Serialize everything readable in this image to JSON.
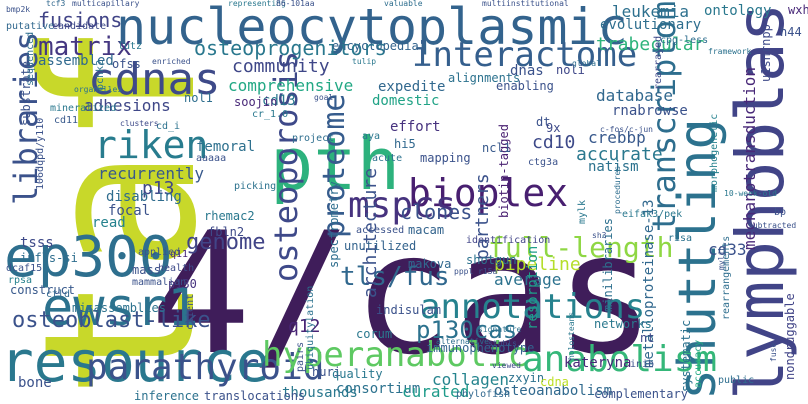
{
  "words": [
    {
      "text": "taf15",
      "color": "#c8d82a"
    },
    {
      "text": "4/cas",
      "color": "#3f1d5a"
    },
    {
      "text": "nucleocytoplasmic",
      "color": "#33638d"
    },
    {
      "text": "ep300",
      "color": "#2e6f8e"
    },
    {
      "text": "pth",
      "color": "#2db27d"
    },
    {
      "text": "ewsr1",
      "color": "#2c728e"
    },
    {
      "text": "resource",
      "color": "#2a788e"
    },
    {
      "text": "cdnas",
      "color": "#3e4a89"
    },
    {
      "text": "lymphoblastic",
      "color": "#414487"
    },
    {
      "text": "shuttling",
      "color": "#2c728e"
    },
    {
      "text": "interactome",
      "color": "#355f8d"
    },
    {
      "text": "bioplex",
      "color": "#481f70"
    },
    {
      "text": "mspcs",
      "color": "#46327e"
    },
    {
      "text": "parathyroid",
      "color": "#3b528b"
    },
    {
      "text": "hyperanabolic",
      "color": "#5ec962"
    },
    {
      "text": "anabolism",
      "color": "#35b779"
    },
    {
      "text": "libraries",
      "color": "#3b528b"
    },
    {
      "text": "riken",
      "color": "#287c8e"
    },
    {
      "text": "transcriptome",
      "color": "#2e6e8e"
    },
    {
      "text": "proteome",
      "color": "#365c8d"
    },
    {
      "text": "osteoporosis",
      "color": "#3e4989"
    },
    {
      "text": "annotations",
      "color": "#26828e"
    },
    {
      "text": "full-length",
      "color": "#8fd744"
    },
    {
      "text": "matrix",
      "color": "#453781"
    },
    {
      "text": "osteoprogenitors",
      "color": "#2a788e"
    },
    {
      "text": "community",
      "color": "#3f4788"
    },
    {
      "text": "comprehensive",
      "color": "#22a884"
    },
    {
      "text": "mechanotransduction",
      "color": "#482878"
    },
    {
      "text": "trabecular",
      "color": "#2fb47c"
    },
    {
      "text": "leukemia",
      "color": "#2d708e"
    },
    {
      "text": "fusions",
      "color": "#414487"
    },
    {
      "text": "osteoblast-like",
      "color": "#3b528b"
    },
    {
      "text": "tls/fus",
      "color": "#31688e"
    },
    {
      "text": "p130cas",
      "color": "#2c728e"
    },
    {
      "text": "q12",
      "color": "#482475"
    },
    {
      "text": "architecture",
      "color": "#3b528b"
    },
    {
      "text": "clones",
      "color": "#3b528b"
    },
    {
      "text": "genome",
      "color": "#414487"
    },
    {
      "text": "p13",
      "color": "#404688"
    },
    {
      "text": "cd10",
      "color": "#3e4a89"
    },
    {
      "text": "partners",
      "color": "#3b528b"
    },
    {
      "text": "pipeline",
      "color": "#b5de2b"
    },
    {
      "text": "average",
      "color": "#2c728e"
    },
    {
      "text": "accurate",
      "color": "#2a788e"
    },
    {
      "text": "crebbp",
      "color": "#38598c"
    },
    {
      "text": "database",
      "color": "#31688e"
    },
    {
      "text": "rnabrowse",
      "color": "#3b528b"
    },
    {
      "text": "immunophenotype",
      "color": "#33638d"
    },
    {
      "text": "collagen",
      "color": "#25848e"
    },
    {
      "text": "resorption",
      "color": "#1f9e89"
    },
    {
      "text": "consortium",
      "color": "#2c728e"
    },
    {
      "text": "curated",
      "color": "#1e9b8a"
    },
    {
      "text": "thousands",
      "color": "#2a788e"
    },
    {
      "text": "osteoanabolism",
      "color": "#30698e"
    },
    {
      "text": "inference",
      "color": "#2c728e"
    },
    {
      "text": "bone",
      "color": "#3b528b"
    },
    {
      "text": "adhesions",
      "color": "#3f4788"
    },
    {
      "text": "recurrently",
      "color": "#38598c"
    },
    {
      "text": "disabling",
      "color": "#2f6c8e"
    },
    {
      "text": "read",
      "color": "#26828e"
    },
    {
      "text": "focal",
      "color": "#3b528b"
    },
    {
      "text": "femoral",
      "color": "#2d708e"
    },
    {
      "text": "tsss",
      "color": "#3e4a89"
    },
    {
      "text": "ontology",
      "color": "#2a788e"
    },
    {
      "text": "evolutionary",
      "color": "#2e6e8e"
    },
    {
      "text": "assembled",
      "color": "#30698e"
    },
    {
      "text": "encyclopedia",
      "color": "#33638d"
    },
    {
      "text": "cd13",
      "color": "#2a788e"
    },
    {
      "text": "soojin",
      "color": "#482878"
    },
    {
      "text": "nol1",
      "color": "#2e6e8e"
    },
    {
      "text": "domestic",
      "color": "#20a386"
    },
    {
      "text": "expedite",
      "color": "#31688e"
    },
    {
      "text": "effort",
      "color": "#46327e"
    },
    {
      "text": "dnas",
      "color": "#3b528b"
    },
    {
      "text": "noli",
      "color": "#3f4788"
    },
    {
      "text": "enabling",
      "color": "#3b528b"
    },
    {
      "text": "biotin-tagged",
      "color": "#481f70"
    },
    {
      "text": "natism",
      "color": "#2c728e"
    },
    {
      "text": "metalloproteinase-13",
      "color": "#31688e"
    },
    {
      "text": "morphogenetic",
      "color": "#26828e"
    },
    {
      "text": "cd33",
      "color": "#3b528b"
    },
    {
      "text": "kateryna",
      "color": "#482878"
    },
    {
      "text": "networks",
      "color": "#2a788e"
    },
    {
      "text": "nt",
      "color": "#3e4a89"
    },
    {
      "text": "minilibraries",
      "color": "#2d708e"
    },
    {
      "text": "systematic",
      "color": "#2c728e"
    },
    {
      "text": "accuracy",
      "color": "#22a884"
    },
    {
      "text": "rearrangements",
      "color": "#2e6e8e"
    },
    {
      "text": "nondruggable",
      "color": "#414487"
    },
    {
      "text": "huri",
      "color": "#3b528b"
    },
    {
      "text": "pairs",
      "color": "#3b528b"
    },
    {
      "text": "quality",
      "color": "#2a788e"
    },
    {
      "text": "zxyin",
      "color": "#2c728e"
    },
    {
      "text": "phylofish",
      "color": "#31688e"
    },
    {
      "text": "complementary",
      "color": "#3b528b"
    },
    {
      "text": "translocations",
      "color": "#3b528b"
    },
    {
      "text": "mass",
      "color": "#3b528b"
    },
    {
      "text": "construct",
      "color": "#38598c"
    },
    {
      "text": "infls-si",
      "color": "#2e6e8e"
    },
    {
      "text": "misassemblies",
      "color": "#2c728e"
    },
    {
      "text": "rhemac2",
      "color": "#2a788e"
    },
    {
      "text": "fbln2",
      "color": "#3e4a89"
    },
    {
      "text": "p130",
      "color": "#46327e"
    },
    {
      "text": "unutilized",
      "color": "#33638d"
    },
    {
      "text": "indisulam",
      "color": "#3b528b"
    },
    {
      "text": "makova",
      "color": "#31688e"
    },
    {
      "text": "shotgun",
      "color": "#2c728e"
    },
    {
      "text": "spectrometry",
      "color": "#2e6e8e"
    },
    {
      "text": "macam",
      "color": "#33638d"
    },
    {
      "text": "ubiquitylation",
      "color": "#2c728e"
    },
    {
      "text": "corum",
      "color": "#2a788e"
    },
    {
      "text": "mapping",
      "color": "#3b528b"
    },
    {
      "text": "hi5",
      "color": "#31688e"
    },
    {
      "text": "ncl1",
      "color": "#38598c"
    },
    {
      "text": "cdna",
      "color": "#bddf26"
    },
    {
      "text": "mylk",
      "color": "#2a788e"
    },
    {
      "text": "dt",
      "color": "#3b528b"
    },
    {
      "text": "9x",
      "color": "#3e4a89"
    },
    {
      "text": "alignments",
      "color": "#2c728e"
    },
    {
      "text": "ofss",
      "color": "#3b528b"
    },
    {
      "text": "lutz",
      "color": "#2a788e"
    },
    {
      "text": "pchk2",
      "color": "#2c728e"
    },
    {
      "text": "u1snrnpp",
      "color": "#3e4a89"
    },
    {
      "text": "h44",
      "color": "#3b528b"
    },
    {
      "text": "wxh",
      "color": "#482878"
    },
    {
      "text": "substrate",
      "color": "#3b528b"
    },
    {
      "text": "putative",
      "color": "#31688e"
    },
    {
      "text": "candidate",
      "color": "#3e4a89"
    },
    {
      "text": "sequenced",
      "color": "#2e6e8e"
    },
    {
      "text": "106dqpd/y110",
      "color": "#3b528b"
    },
    {
      "text": "mineralized",
      "color": "#2a788e"
    },
    {
      "text": "cd11",
      "color": "#38598c"
    },
    {
      "text": "client",
      "color": "#3b528b"
    },
    {
      "text": "cd_i",
      "color": "#2c728e"
    },
    {
      "text": "dcaf15",
      "color": "#3b528b"
    },
    {
      "text": "rpsa",
      "color": "#26828e"
    },
    {
      "text": "ctld",
      "color": "#31688e"
    },
    {
      "text": "mammalian",
      "color": "#3b528b"
    },
    {
      "text": "project",
      "color": "#2e6e8e"
    },
    {
      "text": "aaaaa",
      "color": "#3b528b"
    },
    {
      "text": "health",
      "color": "#3e4a89"
    },
    {
      "text": "q11",
      "color": "#482878"
    },
    {
      "text": "acute",
      "color": "#2c728e"
    },
    {
      "text": "aya",
      "color": "#2a788e"
    },
    {
      "text": "cr_1.0",
      "color": "#2a788e"
    },
    {
      "text": "applied",
      "color": "#3b528b"
    },
    {
      "text": "picking",
      "color": "#2c728e"
    },
    {
      "text": "accessed",
      "color": "#3b528b"
    },
    {
      "text": "cpg-less",
      "color": "#2e6e8e"
    },
    {
      "text": "rearrayed",
      "color": "#3e4a89"
    },
    {
      "text": "ctg3a",
      "color": "#3b528b"
    },
    {
      "text": "eifak3/pek",
      "color": "#2a788e"
    },
    {
      "text": "bp",
      "color": "#3b528b"
    },
    {
      "text": "risa",
      "color": "#2c728e"
    },
    {
      "text": "public",
      "color": "#2e6e8e"
    },
    {
      "text": "inib",
      "color": "#3b528b"
    },
    {
      "text": "identification",
      "color": "#414487"
    },
    {
      "text": "multicapillary",
      "color": "#3b528b"
    },
    {
      "text": "representing",
      "color": "#2a788e"
    },
    {
      "text": "86-101aa",
      "color": "#3b528b"
    },
    {
      "text": "valuable",
      "color": "#2e6e8e"
    },
    {
      "text": "multiinstitutional",
      "color": "#3b528b"
    },
    {
      "text": "tcf3",
      "color": "#31688e"
    },
    {
      "text": "bmp2k",
      "color": "#3b528b"
    },
    {
      "text": "organelles",
      "color": "#2c728e"
    },
    {
      "text": "clusters",
      "color": "#3e4a89"
    },
    {
      "text": "enriched",
      "color": "#3b528b"
    },
    {
      "text": "tulip",
      "color": "#2a788e"
    },
    {
      "text": "goal",
      "color": "#3b528b"
    },
    {
      "text": "global",
      "color": "#2e6e8e"
    },
    {
      "text": "c-fos/c-jun",
      "color": "#3b528b"
    },
    {
      "text": "subtracted",
      "color": "#3b528b"
    },
    {
      "text": "10-week-old",
      "color": "#2a788e"
    },
    {
      "text": "procedures",
      "color": "#2e6e8e"
    },
    {
      "text": "sh3",
      "color": "#3b528b"
    },
    {
      "text": "pppl r15a",
      "color": "#3b528b"
    },
    {
      "text": "signature",
      "color": "#2c728e"
    },
    {
      "text": "alternative",
      "color": "#2e6e8e"
    },
    {
      "text": "stubls",
      "color": "#3b528b"
    },
    {
      "text": "viewed",
      "color": "#3e4a89"
    },
    {
      "text": "holosteans",
      "color": "#2a788e"
    },
    {
      "text": "fuse",
      "color": "#3b528b"
    },
    {
      "text": "mylib",
      "color": "#3b528b"
    },
    {
      "text": "framework",
      "color": "#2c728e"
    }
  ]
}
